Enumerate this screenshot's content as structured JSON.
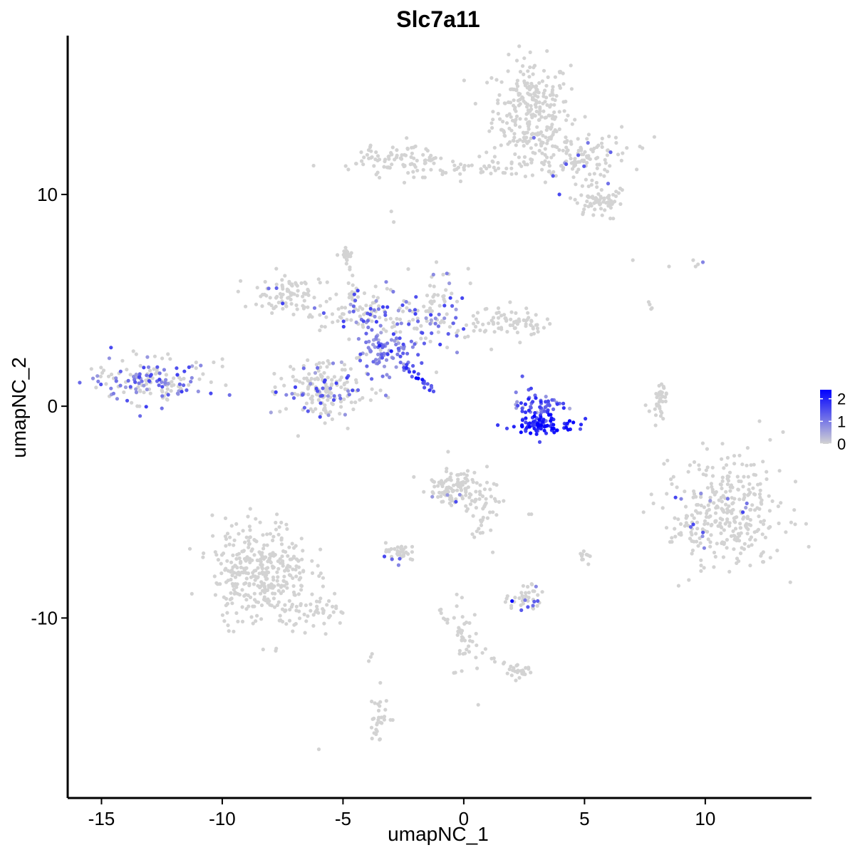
{
  "chart_data": {
    "type": "scatter",
    "title": "Slc7a11",
    "xlabel": "umapNC_1",
    "ylabel": "umapNC_2",
    "xlim": [
      -16.4,
      14.4
    ],
    "ylim": [
      -18.5,
      17.5
    ],
    "x_ticks": [
      -15,
      -10,
      -5,
      0,
      5,
      10
    ],
    "x_tick_labels": [
      "-15",
      "-10",
      "-5",
      "0",
      "5",
      "10"
    ],
    "y_ticks": [
      -10,
      0,
      10
    ],
    "y_tick_labels": [
      "-10",
      "0",
      "10"
    ],
    "grid": false,
    "legend_position": "right",
    "color_scale": {
      "low": "#d3d3d3",
      "high": "#0000ff",
      "min": 0,
      "max": 2.4,
      "ticks": [
        0,
        1,
        2
      ],
      "tick_labels": [
        "0",
        "1",
        "2"
      ]
    },
    "clusters": [
      {
        "cx": 2.8,
        "cy": 14.0,
        "sx": 0.8,
        "sy": 1.2,
        "n": 260,
        "expr": 0.0
      },
      {
        "cx": 4.6,
        "cy": 11.8,
        "sx": 1.1,
        "sy": 0.6,
        "n": 140,
        "expr": 0.02
      },
      {
        "cx": -2.6,
        "cy": 11.7,
        "sx": 0.9,
        "sy": 0.4,
        "n": 90,
        "expr": 0.0
      },
      {
        "cx": 0.6,
        "cy": 11.2,
        "sx": 1.3,
        "sy": 0.25,
        "n": 50,
        "expr": 0.0
      },
      {
        "cx": 5.5,
        "cy": 9.7,
        "sx": 0.6,
        "sy": 0.4,
        "n": 70,
        "expr": 0.0
      },
      {
        "cx": -7.3,
        "cy": 5.3,
        "sx": 0.7,
        "sy": 0.5,
        "n": 80,
        "expr": 0.02
      },
      {
        "cx": -4.9,
        "cy": 7.2,
        "sx": 0.12,
        "sy": 0.15,
        "n": 14,
        "expr": 0.0
      },
      {
        "cx": -4.2,
        "cy": 4.5,
        "sx": 1.2,
        "sy": 0.6,
        "n": 120,
        "expr": 0.15
      },
      {
        "cx": -1.3,
        "cy": 4.6,
        "sx": 0.6,
        "sy": 1.0,
        "n": 90,
        "expr": 0.2
      },
      {
        "cx": 1.8,
        "cy": 4.0,
        "sx": 0.8,
        "sy": 0.35,
        "n": 80,
        "expr": 0.0
      },
      {
        "cx": -3.3,
        "cy": 2.6,
        "sx": 0.6,
        "sy": 0.5,
        "n": 90,
        "expr": 0.9
      },
      {
        "cx": -5.8,
        "cy": 0.7,
        "sx": 0.9,
        "sy": 0.7,
        "n": 190,
        "expr": 0.1
      },
      {
        "cx": -13.0,
        "cy": 1.2,
        "sx": 1.2,
        "sy": 0.5,
        "n": 170,
        "expr": 0.2
      },
      {
        "cx": 3.1,
        "cy": 0.0,
        "sx": 0.6,
        "sy": 0.5,
        "n": 70,
        "expr": 1.3
      },
      {
        "cx": 3.3,
        "cy": -0.9,
        "sx": 0.7,
        "sy": 0.18,
        "n": 80,
        "expr": 2.0
      },
      {
        "cx": 8.1,
        "cy": 0.3,
        "sx": 0.15,
        "sy": 0.4,
        "n": 25,
        "expr": 0.0
      },
      {
        "cx": 10.8,
        "cy": -5.0,
        "sx": 1.2,
        "sy": 1.3,
        "n": 340,
        "expr": 0.02
      },
      {
        "cx": -8.4,
        "cy": -7.8,
        "sx": 1.0,
        "sy": 1.2,
        "n": 360,
        "expr": 0.0
      },
      {
        "cx": -6.0,
        "cy": -9.8,
        "sx": 0.8,
        "sy": 0.35,
        "n": 50,
        "expr": 0.0
      },
      {
        "cx": -0.4,
        "cy": -3.8,
        "sx": 0.6,
        "sy": 0.5,
        "n": 110,
        "expr": 0.02
      },
      {
        "cx": 0.9,
        "cy": -4.6,
        "sx": 0.35,
        "sy": 0.5,
        "n": 30,
        "expr": 0.0
      },
      {
        "cx": -2.6,
        "cy": -6.9,
        "sx": 0.4,
        "sy": 0.15,
        "n": 35,
        "expr": 0.02
      },
      {
        "cx": 2.5,
        "cy": -9.1,
        "sx": 0.4,
        "sy": 0.3,
        "n": 40,
        "expr": 0.05
      },
      {
        "cx": 5.0,
        "cy": -7.1,
        "sx": 0.12,
        "sy": 0.2,
        "n": 10,
        "expr": 0.0
      },
      {
        "cx": 0.0,
        "cy": -10.9,
        "sx": 0.4,
        "sy": 0.9,
        "n": 40,
        "expr": 0.0
      },
      {
        "cx": 2.3,
        "cy": -12.6,
        "sx": 0.25,
        "sy": 0.15,
        "n": 20,
        "expr": 0.0
      },
      {
        "cx": -3.5,
        "cy": -14.6,
        "sx": 0.2,
        "sy": 0.6,
        "n": 30,
        "expr": 0.0
      }
    ],
    "segments": [
      {
        "x0": -2.5,
        "y0": 2.0,
        "x1": -1.3,
        "y1": 0.7,
        "n": 22,
        "spread": 0.08,
        "expr": 1.6
      },
      {
        "x0": -4.9,
        "y0": 7.3,
        "x1": -4.5,
        "y1": 4.8,
        "n": 12,
        "spread": 0.1,
        "expr": 0.0
      },
      {
        "x0": 0.8,
        "y0": -5.0,
        "x1": 0.4,
        "y1": -6.3,
        "n": 12,
        "spread": 0.1,
        "expr": 0.0
      },
      {
        "x0": 7.6,
        "y0": 4.9,
        "x1": 7.8,
        "y1": 4.6,
        "n": 4,
        "spread": 0.05,
        "expr": 0.0
      },
      {
        "x0": 8.4,
        "y0": 1.0,
        "x1": 7.8,
        "y1": -0.2,
        "n": 10,
        "spread": 0.1,
        "expr": 0.0
      },
      {
        "x0": -1.1,
        "y0": -9.5,
        "x1": -0.7,
        "y1": -10.2,
        "n": 6,
        "spread": 0.05,
        "expr": 0.0
      },
      {
        "x0": -3.9,
        "y0": -12.0,
        "x1": -3.8,
        "y1": -11.7,
        "n": 3,
        "spread": 0.05,
        "expr": 0.0
      },
      {
        "x0": 0.9,
        "y0": -11.9,
        "x1": 2.3,
        "y1": -12.5,
        "n": 10,
        "spread": 0.1,
        "expr": 0.0
      }
    ],
    "highlights": [
      {
        "x": 3.2,
        "y": -0.9,
        "v": 2.4
      },
      {
        "x": 2.0,
        "y": -9.2,
        "v": 2.3
      },
      {
        "x": 3.6,
        "y": -0.4,
        "v": 2.2
      },
      {
        "x": -3.0,
        "y": 2.6,
        "v": 2.0
      },
      {
        "x": 2.7,
        "y": -0.2,
        "v": 1.9
      },
      {
        "x": 9.9,
        "y": 6.8,
        "v": 0.9
      },
      {
        "x": 9.4,
        "y": -5.7,
        "v": 1.2
      },
      {
        "x": -14.5,
        "y": 0.6,
        "v": 1.0
      },
      {
        "x": -12.5,
        "y": -0.1,
        "v": 1.1
      },
      {
        "x": -2.7,
        "y": -7.5,
        "v": 0.9
      }
    ],
    "isolated": [
      {
        "x": 7.0,
        "y": 6.9
      },
      {
        "x": 8.5,
        "y": 6.6
      },
      {
        "x": 9.6,
        "y": 6.6
      },
      {
        "x": 9.5,
        "y": 6.9
      },
      {
        "x": 9.7,
        "y": 6.7
      },
      {
        "x": -6.0,
        "y": -16.2
      },
      {
        "x": 0.6,
        "y": -14.1
      },
      {
        "x": 2.7,
        "y": -5.1
      },
      {
        "x": 2.8,
        "y": -5.1
      },
      {
        "x": -2.9,
        "y": 8.7
      },
      {
        "x": -3.0,
        "y": 9.2
      },
      {
        "x": 1.2,
        "y": -6.9
      }
    ]
  }
}
